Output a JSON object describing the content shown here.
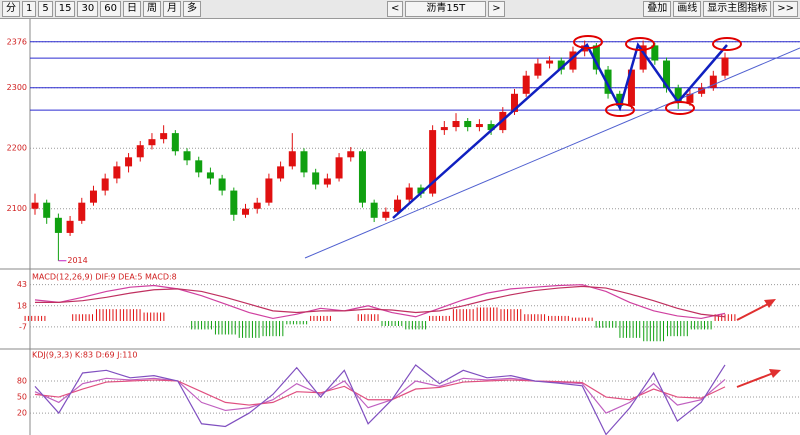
{
  "toolbar": {
    "periods": [
      "分",
      "1",
      "5",
      "15",
      "30",
      "60",
      "日",
      "周",
      "月",
      "多"
    ],
    "prev": "<",
    "symbol": "沥青15T",
    "next": ">",
    "actions": [
      "叠加",
      "画线",
      "显示主图指标",
      ">>"
    ]
  },
  "chart_data": [
    {
      "type": "candlestick",
      "ylim": [
        2002,
        2412
      ],
      "yticks": [
        2100,
        2200,
        2300,
        2376
      ],
      "levels": [
        2376,
        2349,
        2300,
        2263
      ],
      "level_color": "#2a2ad0",
      "up_color": "#e01010",
      "down_color": "#10a010",
      "annotation": "2014",
      "candles": [
        [
          2100,
          2125,
          2090,
          2110
        ],
        [
          2110,
          2115,
          2075,
          2085
        ],
        [
          2085,
          2092,
          2014,
          2060
        ],
        [
          2060,
          2088,
          2055,
          2080
        ],
        [
          2080,
          2118,
          2075,
          2110
        ],
        [
          2110,
          2138,
          2105,
          2130
        ],
        [
          2130,
          2158,
          2122,
          2150
        ],
        [
          2150,
          2178,
          2142,
          2170
        ],
        [
          2170,
          2192,
          2160,
          2185
        ],
        [
          2185,
          2212,
          2178,
          2205
        ],
        [
          2205,
          2225,
          2198,
          2215
        ],
        [
          2215,
          2238,
          2208,
          2225
        ],
        [
          2225,
          2230,
          2188,
          2195
        ],
        [
          2195,
          2200,
          2172,
          2180
        ],
        [
          2180,
          2186,
          2152,
          2160
        ],
        [
          2160,
          2168,
          2140,
          2150
        ],
        [
          2150,
          2156,
          2122,
          2130
        ],
        [
          2130,
          2135,
          2080,
          2090
        ],
        [
          2090,
          2108,
          2085,
          2100
        ],
        [
          2100,
          2118,
          2092,
          2110
        ],
        [
          2110,
          2158,
          2105,
          2150
        ],
        [
          2150,
          2178,
          2145,
          2170
        ],
        [
          2170,
          2225,
          2165,
          2195
        ],
        [
          2195,
          2200,
          2152,
          2160
        ],
        [
          2160,
          2166,
          2132,
          2140
        ],
        [
          2140,
          2158,
          2135,
          2150
        ],
        [
          2150,
          2192,
          2145,
          2185
        ],
        [
          2185,
          2202,
          2178,
          2195
        ],
        [
          2195,
          2198,
          2102,
          2110
        ],
        [
          2110,
          2115,
          2078,
          2085
        ],
        [
          2085,
          2102,
          2080,
          2095
        ],
        [
          2095,
          2122,
          2090,
          2115
        ],
        [
          2115,
          2142,
          2110,
          2135
        ],
        [
          2135,
          2140,
          2118,
          2125
        ],
        [
          2125,
          2238,
          2120,
          2230
        ],
        [
          2230,
          2245,
          2222,
          2235
        ],
        [
          2235,
          2258,
          2228,
          2245
        ],
        [
          2245,
          2250,
          2228,
          2235
        ],
        [
          2235,
          2248,
          2228,
          2240
        ],
        [
          2240,
          2246,
          2222,
          2230
        ],
        [
          2230,
          2268,
          2225,
          2260
        ],
        [
          2260,
          2298,
          2255,
          2290
        ],
        [
          2290,
          2328,
          2285,
          2320
        ],
        [
          2320,
          2348,
          2315,
          2340
        ],
        [
          2340,
          2352,
          2332,
          2345
        ],
        [
          2345,
          2350,
          2322,
          2330
        ],
        [
          2330,
          2368,
          2325,
          2360
        ],
        [
          2360,
          2378,
          2352,
          2370
        ],
        [
          2370,
          2374,
          2322,
          2330
        ],
        [
          2330,
          2336,
          2282,
          2290
        ],
        [
          2290,
          2295,
          2262,
          2270
        ],
        [
          2270,
          2338,
          2265,
          2330
        ],
        [
          2330,
          2378,
          2325,
          2370
        ],
        [
          2370,
          2374,
          2338,
          2345
        ],
        [
          2345,
          2350,
          2292,
          2300
        ],
        [
          2300,
          2305,
          2265,
          2275
        ],
        [
          2275,
          2298,
          2270,
          2290
        ],
        [
          2290,
          2308,
          2285,
          2300
        ],
        [
          2300,
          2328,
          2295,
          2320
        ],
        [
          2320,
          2358,
          2315,
          2350
        ]
      ]
    },
    {
      "type": "macd",
      "title": "MACD(12,26,9) DIF:9 DEA:5 MACD:8",
      "ylim": [
        -32,
        58
      ],
      "yticks": [
        -7,
        18,
        43
      ],
      "series": [
        {
          "color": "#d040a0",
          "values": [
            25,
            22,
            28,
            35,
            40,
            42,
            38,
            30,
            20,
            10,
            3,
            8,
            15,
            12,
            18,
            10,
            5,
            15,
            25,
            33,
            38,
            40,
            42,
            43,
            35,
            22,
            12,
            6,
            3,
            9
          ]
        },
        {
          "color": "#c03060",
          "values": [
            22,
            22,
            24,
            28,
            33,
            37,
            38,
            35,
            28,
            20,
            12,
            10,
            12,
            12,
            14,
            13,
            10,
            12,
            18,
            25,
            31,
            36,
            39,
            41,
            39,
            32,
            24,
            15,
            8,
            5
          ]
        }
      ],
      "histogram": {
        "up_color": "#e01010",
        "down_color": "#10a010",
        "values": [
          6,
          0,
          8,
          14,
          14,
          10,
          0,
          -10,
          -16,
          -20,
          -18,
          -4,
          6,
          0,
          8,
          -6,
          -10,
          6,
          14,
          16,
          14,
          8,
          6,
          4,
          -8,
          -20,
          -24,
          -18,
          -10,
          8
        ]
      }
    },
    {
      "type": "kdj",
      "title": "KDJ(9,3,3) K:83 D:69 J:110",
      "ylim": [
        -21,
        138
      ],
      "yticks": [
        20,
        50,
        80
      ],
      "series": [
        {
          "color": "#c060c0",
          "values": [
            60,
            40,
            75,
            85,
            82,
            85,
            80,
            40,
            25,
            30,
            45,
            75,
            55,
            80,
            30,
            45,
            80,
            70,
            85,
            82,
            85,
            80,
            78,
            75,
            20,
            40,
            75,
            35,
            45,
            83
          ]
        },
        {
          "color": "#e05080",
          "values": [
            55,
            50,
            65,
            78,
            80,
            82,
            80,
            60,
            40,
            35,
            40,
            60,
            58,
            70,
            45,
            45,
            65,
            68,
            78,
            80,
            82,
            80,
            79,
            77,
            50,
            45,
            65,
            50,
            48,
            69
          ]
        },
        {
          "color": "#8050c0",
          "values": [
            70,
            20,
            95,
            100,
            86,
            90,
            80,
            0,
            -5,
            20,
            55,
            105,
            50,
            100,
            0,
            45,
            110,
            75,
            100,
            86,
            90,
            80,
            76,
            71,
            -20,
            30,
            95,
            5,
            40,
            110
          ]
        }
      ]
    }
  ]
}
